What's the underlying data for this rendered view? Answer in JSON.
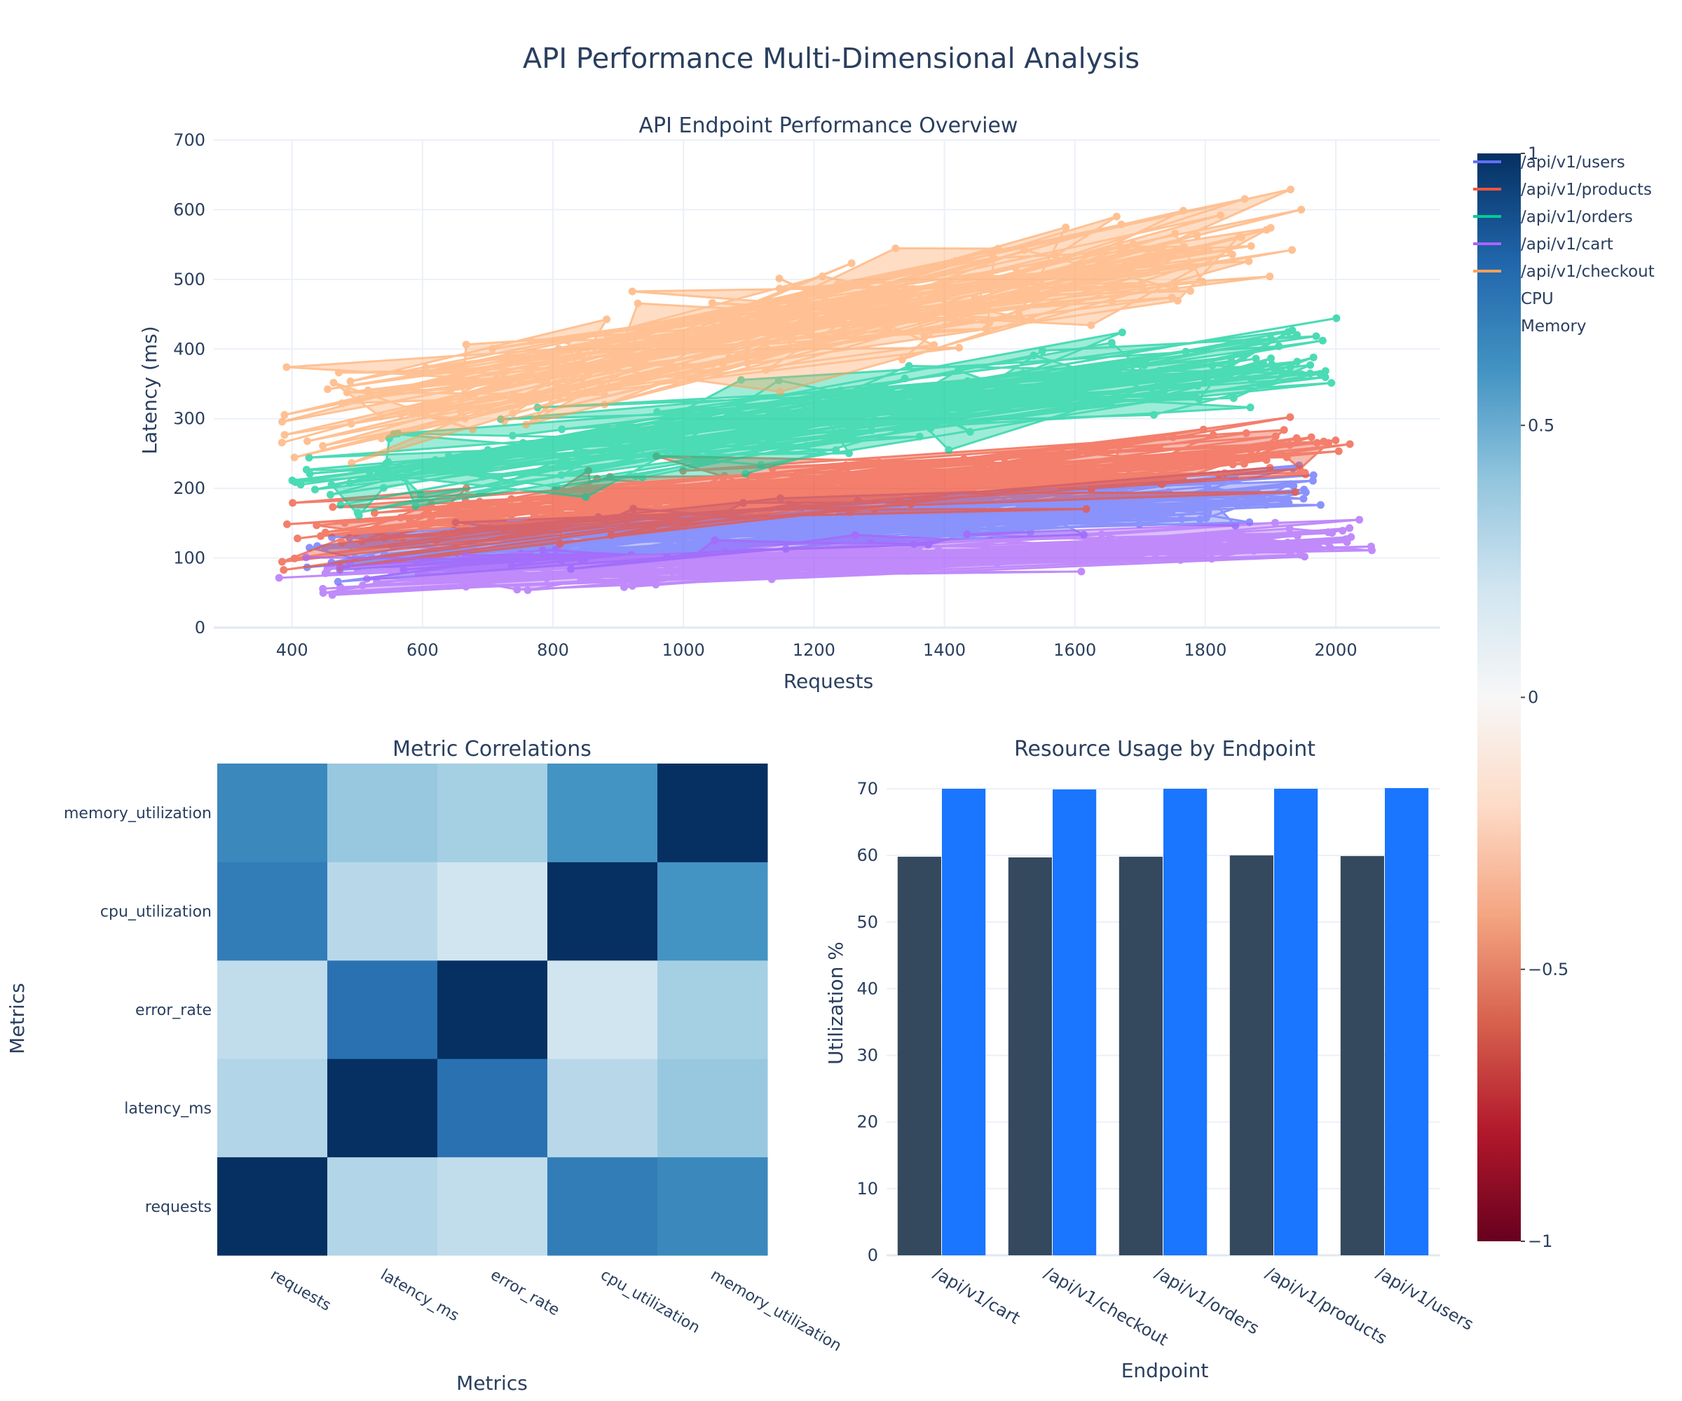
{
  "title": "API Performance Multi-Dimensional Analysis",
  "colors": {
    "users": "#636efa",
    "products": "#ef553b",
    "orders": "#00cc96",
    "cart": "#ab63fa",
    "checkout": "#ffa15a",
    "cpu": "#34495e",
    "memory": "#1a75ff",
    "grid": "#ebf0f8",
    "axis": "#2a3f5f"
  },
  "legend": [
    "/api/v1/users",
    "/api/v1/products",
    "/api/v1/orders",
    "/api/v1/cart",
    "/api/v1/checkout",
    "CPU",
    "Memory"
  ],
  "colorbar": {
    "ticks": [
      "1",
      "0.5",
      "0",
      "−0.5",
      "−1"
    ]
  },
  "chart_data": [
    {
      "type": "scatter",
      "title": "API Endpoint Performance Overview",
      "xlabel": "Requests",
      "ylabel": "Latency (ms)",
      "xlim": [
        280,
        2160
      ],
      "ylim": [
        0,
        700
      ],
      "xticks": [
        400,
        600,
        800,
        1000,
        1200,
        1400,
        1600,
        1800,
        2000
      ],
      "yticks": [
        0,
        100,
        200,
        300,
        400,
        500,
        600,
        700
      ],
      "grid": true,
      "legend_position": "right",
      "series": [
        {
          "name": "/api/v1/users",
          "color_key": "users",
          "x_range": [
            420,
            1980
          ],
          "latency_trend": [
            100,
            195
          ],
          "spread": 32,
          "alpha": 0.75
        },
        {
          "name": "/api/v1/products",
          "color_key": "products",
          "x_range": [
            380,
            2030
          ],
          "latency_trend": [
            135,
            265
          ],
          "spread": 45,
          "alpha": 0.75
        },
        {
          "name": "/api/v1/orders",
          "color_key": "orders",
          "x_range": [
            400,
            2010
          ],
          "latency_trend": [
            195,
            395
          ],
          "spread": 55,
          "alpha": 0.7
        },
        {
          "name": "/api/v1/cart",
          "color_key": "cart",
          "x_range": [
            375,
            2060
          ],
          "latency_trend": [
            65,
            130
          ],
          "spread": 25,
          "alpha": 0.75
        },
        {
          "name": "/api/v1/checkout",
          "color_key": "checkout",
          "x_range": [
            380,
            1950
          ],
          "latency_trend": [
            300,
            570
          ],
          "spread": 72,
          "alpha": 0.65
        }
      ]
    },
    {
      "type": "heatmap",
      "title": "Metric Correlations",
      "xlabel": "Metrics",
      "ylabel": "Metrics",
      "categories": [
        "requests",
        "latency_ms",
        "error_rate",
        "cpu_utilization",
        "memory_utilization"
      ],
      "colorscale": "RdBu",
      "zlim": [
        -1,
        1
      ],
      "matrix": [
        [
          1.0,
          0.3,
          0.25,
          0.7,
          0.65
        ],
        [
          0.3,
          1.0,
          0.75,
          0.28,
          0.38
        ],
        [
          0.25,
          0.75,
          1.0,
          0.2,
          0.34
        ],
        [
          0.7,
          0.28,
          0.2,
          1.0,
          0.6
        ],
        [
          0.65,
          0.38,
          0.34,
          0.6,
          1.0
        ]
      ]
    },
    {
      "type": "bar",
      "title": "Resource Usage by Endpoint",
      "xlabel": "Endpoint",
      "ylabel": "Utilization %",
      "categories": [
        "/api/v1/cart",
        "/api/v1/checkout",
        "/api/v1/orders",
        "/api/v1/products",
        "/api/v1/users"
      ],
      "ylim": [
        0,
        70
      ],
      "yticks": [
        0,
        10,
        20,
        30,
        40,
        50,
        60,
        70
      ],
      "series": [
        {
          "name": "CPU",
          "color_key": "cpu",
          "values": [
            59.8,
            59.7,
            59.8,
            60.0,
            59.9
          ]
        },
        {
          "name": "Memory",
          "color_key": "memory",
          "values": [
            70.0,
            69.9,
            70.0,
            70.0,
            70.1
          ]
        }
      ]
    }
  ]
}
